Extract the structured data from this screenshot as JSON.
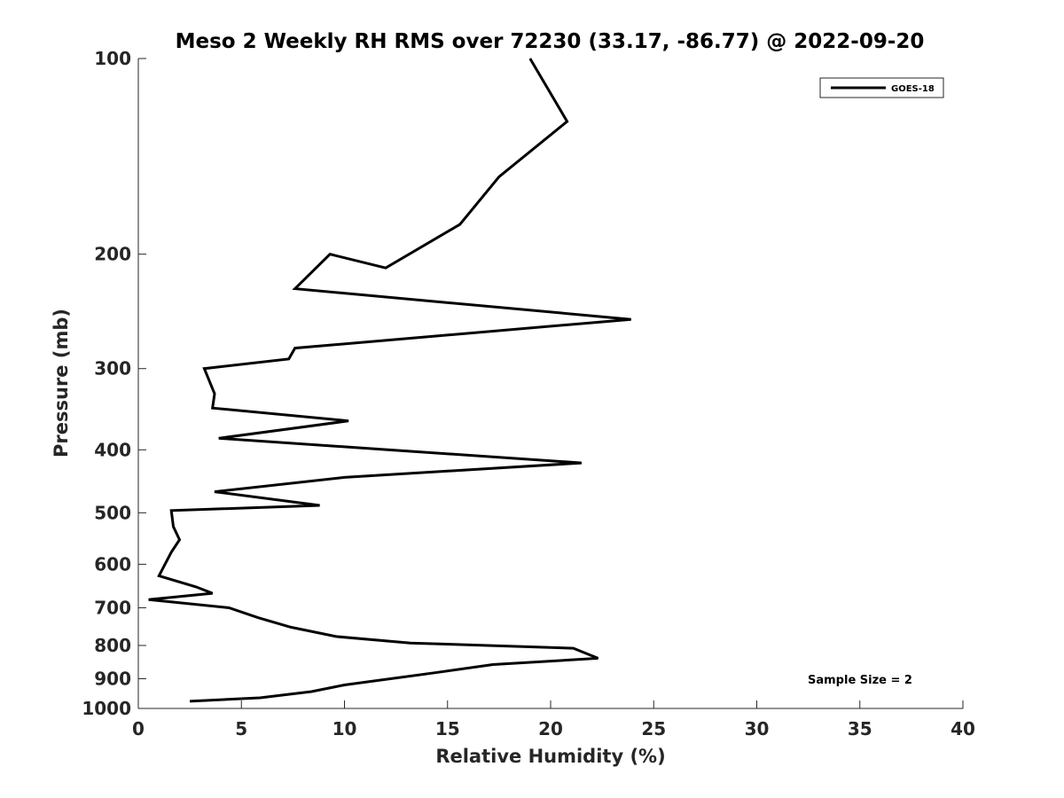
{
  "chart_data": {
    "type": "line",
    "title": "Meso 2 Weekly RH RMS over 72230 (33.17, -86.77) @ 2022-09-20",
    "xlabel": "Relative Humidity (%)",
    "ylabel": "Pressure (mb)",
    "xlim": [
      0,
      40
    ],
    "ylim": [
      100,
      1000
    ],
    "yscale": "log",
    "y_reversed": true,
    "grid": false,
    "xticks": [
      0,
      5,
      10,
      15,
      20,
      25,
      30,
      35,
      40
    ],
    "xtick_labels": [
      "0",
      "5",
      "10",
      "15",
      "20",
      "25",
      "30",
      "35",
      "40"
    ],
    "yticks": [
      100,
      200,
      300,
      400,
      500,
      600,
      700,
      800,
      900,
      1000
    ],
    "ytick_labels": [
      "100",
      "200",
      "300",
      "400",
      "500",
      "600",
      "700",
      "800",
      "900",
      "1000"
    ],
    "legend_position": "top-right",
    "series": [
      {
        "name": "GOES-18",
        "color": "#000000",
        "points": [
          [
            19.0,
            100
          ],
          [
            20.8,
            125
          ],
          [
            17.5,
            152
          ],
          [
            15.6,
            180
          ],
          [
            12.0,
            210
          ],
          [
            9.3,
            200
          ],
          [
            7.6,
            226
          ],
          [
            23.9,
            252
          ],
          [
            7.6,
            279
          ],
          [
            7.3,
            290
          ],
          [
            3.2,
            300
          ],
          [
            3.7,
            328
          ],
          [
            3.6,
            345
          ],
          [
            10.2,
            361
          ],
          [
            3.9,
            384
          ],
          [
            21.5,
            419
          ],
          [
            10.0,
            441
          ],
          [
            3.7,
            464
          ],
          [
            8.8,
            487
          ],
          [
            1.6,
            496
          ],
          [
            1.7,
            525
          ],
          [
            2.0,
            550
          ],
          [
            1.6,
            575
          ],
          [
            1.0,
            625
          ],
          [
            2.8,
            650
          ],
          [
            3.6,
            665
          ],
          [
            0.5,
            680
          ],
          [
            4.4,
            700
          ],
          [
            5.8,
            725
          ],
          [
            7.4,
            750
          ],
          [
            9.6,
            775
          ],
          [
            13.2,
            793
          ],
          [
            21.1,
            808
          ],
          [
            22.3,
            837
          ],
          [
            17.2,
            856
          ],
          [
            14.4,
            881
          ],
          [
            10.0,
            920
          ],
          [
            8.4,
            942
          ],
          [
            5.9,
            963
          ],
          [
            2.5,
            975
          ]
        ]
      }
    ],
    "annotations": [
      "Sample Size = 2"
    ]
  }
}
